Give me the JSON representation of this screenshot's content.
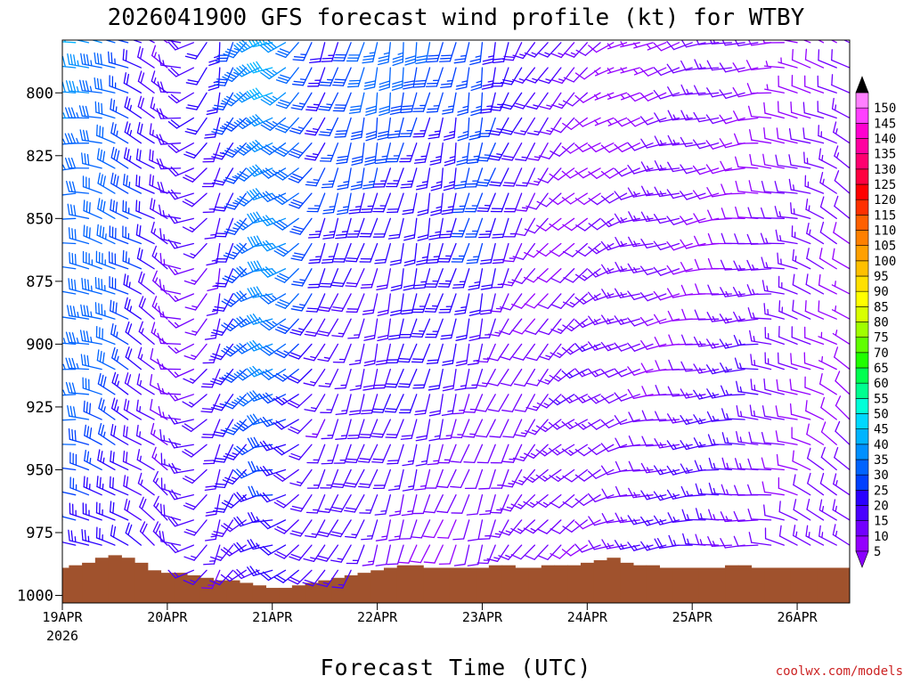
{
  "chart_data": {
    "type": "wind-barb-profile",
    "title": "2026041900 GFS forecast wind profile (kt) for WTBY",
    "xlabel": "Forecast Time (UTC)",
    "ylabel": "",
    "credit": "coolwx.com/models",
    "y_axis": {
      "ticks": [
        800,
        825,
        850,
        875,
        900,
        925,
        950,
        975,
        1000
      ],
      "tick_labels": [
        "800",
        "825",
        "850",
        "875",
        "900",
        "925",
        "950",
        "975",
        "1000"
      ],
      "range_hpa": [
        779,
        1003
      ]
    },
    "x_axis": {
      "ticks": [
        "19APR",
        "20APR",
        "21APR",
        "22APR",
        "23APR",
        "24APR",
        "25APR",
        "26APR"
      ],
      "first_tick_year": "2026",
      "range_hours": [
        0,
        180
      ]
    },
    "colorbar": {
      "levels": [
        5,
        10,
        15,
        20,
        25,
        30,
        35,
        40,
        45,
        50,
        55,
        60,
        65,
        70,
        75,
        80,
        85,
        90,
        95,
        100,
        105,
        110,
        115,
        120,
        125,
        130,
        135,
        140,
        145,
        150
      ],
      "labels": [
        "5",
        "10",
        "15",
        "20",
        "25",
        "30",
        "35",
        "40",
        "45",
        "50",
        "55",
        "60",
        "65",
        "70",
        "75",
        "80",
        "85",
        "90",
        "95",
        "100",
        "105",
        "110",
        "115",
        "120",
        "125",
        "130",
        "135",
        "140",
        "145",
        "150"
      ],
      "colors": [
        "#9400ff",
        "#7200ff",
        "#4a00ff",
        "#2a00ff",
        "#0040ff",
        "#0064ff",
        "#0090ff",
        "#00b4ff",
        "#00d8ff",
        "#00ffd8",
        "#00ff90",
        "#00ff50",
        "#20ff00",
        "#60ff00",
        "#a0ff00",
        "#d8ff00",
        "#ffff00",
        "#ffe000",
        "#ffc000",
        "#ffa000",
        "#ff8000",
        "#ff6000",
        "#ff3000",
        "#ff0000",
        "#ff0040",
        "#ff0070",
        "#ff00a0",
        "#ff00d0",
        "#ff40ff",
        "#ff80ff"
      ],
      "under_color": "#8a00ff",
      "over_color": "#000000"
    },
    "surface_pressure": {
      "hours": [
        0,
        3,
        6,
        9,
        12,
        15,
        18,
        21,
        24,
        27,
        30,
        33,
        36,
        39,
        42,
        45,
        48,
        51,
        54,
        57,
        60,
        63,
        66,
        69,
        72,
        75,
        78,
        81,
        84,
        87,
        90,
        93,
        96,
        99,
        102,
        105,
        108,
        111,
        114,
        117,
        120,
        123,
        126,
        129,
        132,
        135,
        138,
        141,
        144,
        147,
        150,
        153,
        156,
        159,
        162,
        165,
        168,
        171,
        174,
        177,
        180
      ],
      "hpa": [
        989,
        988,
        987,
        985,
        984,
        985,
        987,
        990,
        991,
        991,
        992,
        993,
        994,
        994,
        995,
        996,
        997,
        997,
        996,
        995,
        994,
        993,
        992,
        991,
        990,
        989,
        988,
        988,
        989,
        989,
        989,
        989,
        989,
        988,
        988,
        989,
        989,
        988,
        988,
        988,
        987,
        986,
        985,
        987,
        988,
        988,
        989,
        989,
        989,
        989,
        989,
        988,
        988,
        989,
        989,
        989,
        989,
        989,
        989,
        989,
        989
      ],
      "fill_color": "#a0522d"
    },
    "wind_levels_hpa": [
      780,
      790,
      800,
      810,
      820,
      830,
      840,
      850,
      860,
      870,
      880,
      890,
      900,
      910,
      920,
      930,
      940,
      950,
      960,
      970,
      980,
      990
    ],
    "wind_hours": [
      0,
      3,
      6,
      9,
      12,
      15,
      18,
      21,
      24,
      27,
      30,
      33,
      36,
      39,
      42,
      45,
      48,
      51,
      54,
      57,
      60,
      63,
      66,
      69,
      72,
      75,
      78,
      81,
      84,
      87,
      90,
      93,
      96,
      99,
      102,
      105,
      108,
      111,
      114,
      117,
      120,
      123,
      126,
      129,
      132,
      135,
      138,
      141,
      144,
      147,
      150,
      153,
      156,
      159,
      162,
      165,
      168,
      171,
      174,
      177,
      180
    ],
    "wind_field_keypoints": [
      {
        "hour": 0,
        "dir_deg": 260,
        "speed_kt_upper": 40,
        "speed_kt_lower": 25
      },
      {
        "hour": 12,
        "dir_deg": 290,
        "speed_kt_upper": 35,
        "speed_kt_lower": 25
      },
      {
        "hour": 24,
        "dir_deg": 300,
        "speed_kt_upper": 15,
        "speed_kt_lower": 15
      },
      {
        "hour": 36,
        "dir_deg": 190,
        "speed_kt_upper": 20,
        "speed_kt_lower": 15
      },
      {
        "hour": 48,
        "dir_deg": 250,
        "speed_kt_upper": 45,
        "speed_kt_lower": 25
      },
      {
        "hour": 60,
        "dir_deg": 200,
        "speed_kt_upper": 25,
        "speed_kt_lower": 15
      },
      {
        "hour": 72,
        "dir_deg": 190,
        "speed_kt_upper": 30,
        "speed_kt_lower": 12
      },
      {
        "hour": 96,
        "dir_deg": 190,
        "speed_kt_upper": 30,
        "speed_kt_lower": 10
      },
      {
        "hour": 108,
        "dir_deg": 210,
        "speed_kt_upper": 15,
        "speed_kt_lower": 10
      },
      {
        "hour": 132,
        "dir_deg": 250,
        "speed_kt_upper": 8,
        "speed_kt_lower": 15
      },
      {
        "hour": 156,
        "dir_deg": 260,
        "speed_kt_upper": 10,
        "speed_kt_lower": 15
      },
      {
        "hour": 180,
        "dir_deg": 300,
        "speed_kt_upper": 10,
        "speed_kt_lower": 10
      }
    ]
  }
}
